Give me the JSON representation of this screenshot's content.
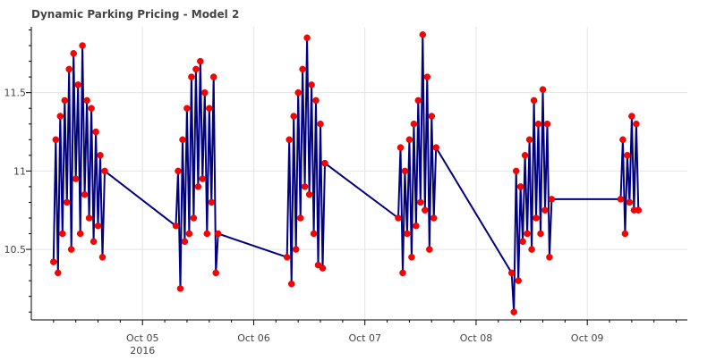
{
  "chart_data": {
    "type": "line",
    "title": "Dynamic Parking Pricing - Model 2",
    "xlabel": "",
    "ylabel": "",
    "ylim": [
      10.05,
      11.92
    ],
    "grid": true,
    "x_ticks": [
      {
        "value": 1.0,
        "label": "Oct 05",
        "sublabel": "2016"
      },
      {
        "value": 2.0,
        "label": "Oct 06",
        "sublabel": ""
      },
      {
        "value": 3.0,
        "label": "Oct 07",
        "sublabel": ""
      },
      {
        "value": 4.0,
        "label": "Oct 08",
        "sublabel": ""
      },
      {
        "value": 5.0,
        "label": "Oct 09",
        "sublabel": ""
      }
    ],
    "y_ticks": [
      {
        "value": 10.5,
        "label": "10.5"
      },
      {
        "value": 11.0,
        "label": "11"
      },
      {
        "value": 11.5,
        "label": "11.5"
      }
    ],
    "series": [
      {
        "color_line": "#000080",
        "color_points": "#ff0000",
        "points": [
          {
            "x": 0.2,
            "y": 10.42
          },
          {
            "x": 0.22,
            "y": 11.2
          },
          {
            "x": 0.24,
            "y": 10.35
          },
          {
            "x": 0.26,
            "y": 11.35
          },
          {
            "x": 0.28,
            "y": 10.6
          },
          {
            "x": 0.3,
            "y": 11.45
          },
          {
            "x": 0.32,
            "y": 10.8
          },
          {
            "x": 0.34,
            "y": 11.65
          },
          {
            "x": 0.36,
            "y": 10.5
          },
          {
            "x": 0.38,
            "y": 11.75
          },
          {
            "x": 0.4,
            "y": 10.95
          },
          {
            "x": 0.42,
            "y": 11.55
          },
          {
            "x": 0.44,
            "y": 10.6
          },
          {
            "x": 0.46,
            "y": 11.8
          },
          {
            "x": 0.48,
            "y": 10.85
          },
          {
            "x": 0.5,
            "y": 11.45
          },
          {
            "x": 0.52,
            "y": 10.7
          },
          {
            "x": 0.54,
            "y": 11.4
          },
          {
            "x": 0.56,
            "y": 10.55
          },
          {
            "x": 0.58,
            "y": 11.25
          },
          {
            "x": 0.6,
            "y": 10.65
          },
          {
            "x": 0.62,
            "y": 11.1
          },
          {
            "x": 0.64,
            "y": 10.45
          },
          {
            "x": 0.66,
            "y": 11.0
          },
          {
            "x": 1.3,
            "y": 10.65
          },
          {
            "x": 1.32,
            "y": 11.0
          },
          {
            "x": 1.34,
            "y": 10.25
          },
          {
            "x": 1.36,
            "y": 11.2
          },
          {
            "x": 1.38,
            "y": 10.55
          },
          {
            "x": 1.4,
            "y": 11.4
          },
          {
            "x": 1.42,
            "y": 10.6
          },
          {
            "x": 1.44,
            "y": 11.6
          },
          {
            "x": 1.46,
            "y": 10.7
          },
          {
            "x": 1.48,
            "y": 11.65
          },
          {
            "x": 1.5,
            "y": 10.9
          },
          {
            "x": 1.52,
            "y": 11.7
          },
          {
            "x": 1.54,
            "y": 10.95
          },
          {
            "x": 1.56,
            "y": 11.5
          },
          {
            "x": 1.58,
            "y": 10.6
          },
          {
            "x": 1.6,
            "y": 11.4
          },
          {
            "x": 1.62,
            "y": 10.8
          },
          {
            "x": 1.64,
            "y": 11.6
          },
          {
            "x": 1.66,
            "y": 10.35
          },
          {
            "x": 1.68,
            "y": 10.6
          },
          {
            "x": 2.3,
            "y": 10.45
          },
          {
            "x": 2.32,
            "y": 11.2
          },
          {
            "x": 2.34,
            "y": 10.28
          },
          {
            "x": 2.36,
            "y": 11.35
          },
          {
            "x": 2.38,
            "y": 10.5
          },
          {
            "x": 2.4,
            "y": 11.5
          },
          {
            "x": 2.42,
            "y": 10.7
          },
          {
            "x": 2.44,
            "y": 11.65
          },
          {
            "x": 2.46,
            "y": 10.9
          },
          {
            "x": 2.48,
            "y": 11.85
          },
          {
            "x": 2.5,
            "y": 10.85
          },
          {
            "x": 2.52,
            "y": 11.55
          },
          {
            "x": 2.54,
            "y": 10.6
          },
          {
            "x": 2.56,
            "y": 11.45
          },
          {
            "x": 2.58,
            "y": 10.4
          },
          {
            "x": 2.6,
            "y": 11.3
          },
          {
            "x": 2.62,
            "y": 10.38
          },
          {
            "x": 2.64,
            "y": 11.05
          },
          {
            "x": 3.3,
            "y": 10.7
          },
          {
            "x": 3.32,
            "y": 11.15
          },
          {
            "x": 3.34,
            "y": 10.35
          },
          {
            "x": 3.36,
            "y": 11.0
          },
          {
            "x": 3.38,
            "y": 10.6
          },
          {
            "x": 3.4,
            "y": 11.2
          },
          {
            "x": 3.42,
            "y": 10.45
          },
          {
            "x": 3.44,
            "y": 11.3
          },
          {
            "x": 3.46,
            "y": 10.65
          },
          {
            "x": 3.48,
            "y": 11.45
          },
          {
            "x": 3.5,
            "y": 10.8
          },
          {
            "x": 3.52,
            "y": 11.87
          },
          {
            "x": 3.54,
            "y": 10.75
          },
          {
            "x": 3.56,
            "y": 11.6
          },
          {
            "x": 3.58,
            "y": 10.5
          },
          {
            "x": 3.6,
            "y": 11.35
          },
          {
            "x": 3.62,
            "y": 10.7
          },
          {
            "x": 3.64,
            "y": 11.15
          },
          {
            "x": 4.32,
            "y": 10.35
          },
          {
            "x": 4.34,
            "y": 10.1
          },
          {
            "x": 4.36,
            "y": 11.0
          },
          {
            "x": 4.38,
            "y": 10.3
          },
          {
            "x": 4.4,
            "y": 10.9
          },
          {
            "x": 4.42,
            "y": 10.55
          },
          {
            "x": 4.44,
            "y": 11.1
          },
          {
            "x": 4.46,
            "y": 10.6
          },
          {
            "x": 4.48,
            "y": 11.2
          },
          {
            "x": 4.5,
            "y": 10.5
          },
          {
            "x": 4.52,
            "y": 11.45
          },
          {
            "x": 4.54,
            "y": 10.7
          },
          {
            "x": 4.56,
            "y": 11.3
          },
          {
            "x": 4.58,
            "y": 10.6
          },
          {
            "x": 4.6,
            "y": 11.52
          },
          {
            "x": 4.62,
            "y": 10.75
          },
          {
            "x": 4.64,
            "y": 11.3
          },
          {
            "x": 4.66,
            "y": 10.45
          },
          {
            "x": 4.68,
            "y": 10.82
          },
          {
            "x": 5.3,
            "y": 10.82
          },
          {
            "x": 5.32,
            "y": 11.2
          },
          {
            "x": 5.34,
            "y": 10.6
          },
          {
            "x": 5.36,
            "y": 11.1
          },
          {
            "x": 5.38,
            "y": 10.8
          },
          {
            "x": 5.4,
            "y": 11.35
          },
          {
            "x": 5.42,
            "y": 10.75
          },
          {
            "x": 5.44,
            "y": 11.3
          },
          {
            "x": 5.46,
            "y": 10.75
          }
        ]
      }
    ]
  }
}
